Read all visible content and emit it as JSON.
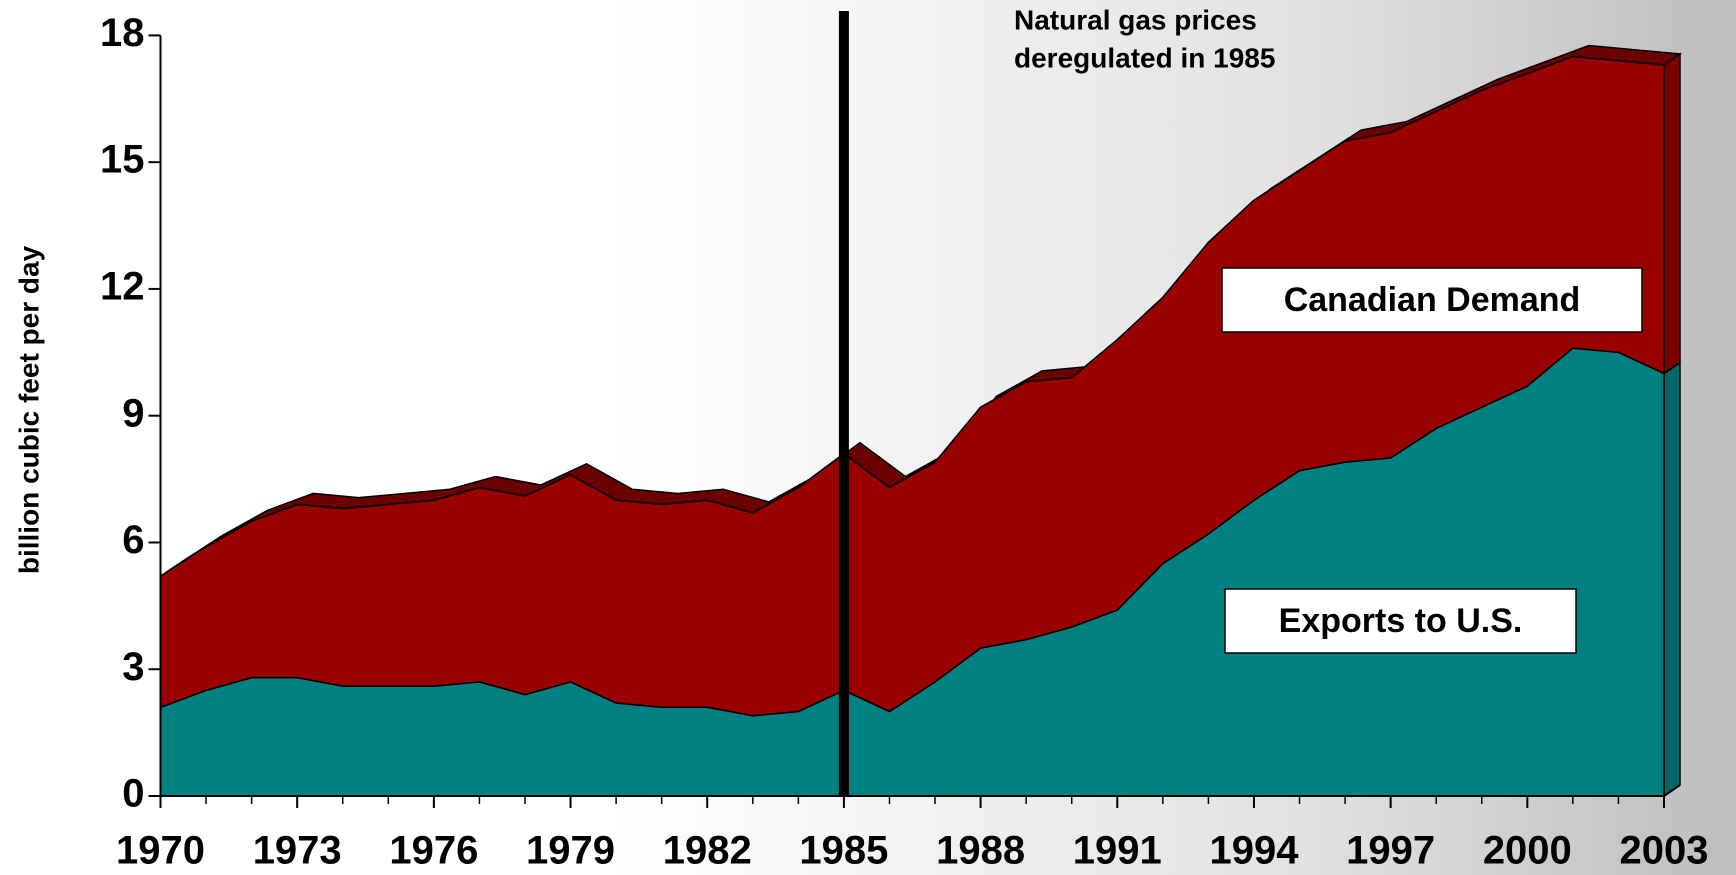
{
  "chart_data": {
    "type": "stacked_area",
    "ylabel": "billion cubic feet per day",
    "annotation": [
      "Natural gas prices",
      "deregulated in 1985"
    ],
    "vline_x": 1985,
    "x": [
      1970,
      1971,
      1972,
      1973,
      1974,
      1975,
      1976,
      1977,
      1978,
      1979,
      1980,
      1981,
      1982,
      1983,
      1984,
      1985,
      1986,
      1987,
      1988,
      1989,
      1990,
      1991,
      1992,
      1993,
      1994,
      1995,
      1996,
      1997,
      1998,
      1999,
      2000,
      2001,
      2002,
      2003
    ],
    "series": [
      {
        "name": "Exports to U.S.",
        "color": "#008080",
        "values": [
          2.1,
          2.5,
          2.8,
          2.8,
          2.6,
          2.6,
          2.6,
          2.7,
          2.4,
          2.7,
          2.2,
          2.1,
          2.1,
          1.9,
          2.0,
          2.5,
          2.0,
          2.7,
          3.5,
          3.7,
          4.0,
          4.4,
          5.5,
          6.2,
          7.0,
          7.7,
          7.9,
          8.0,
          8.7,
          9.2,
          9.7,
          10.6,
          10.5,
          10.0
        ]
      },
      {
        "name": "Canadian Demand",
        "color": "#990000",
        "values": [
          3.1,
          3.4,
          3.7,
          4.1,
          4.2,
          4.3,
          4.4,
          4.6,
          4.7,
          4.9,
          4.8,
          4.8,
          4.9,
          4.8,
          5.3,
          5.6,
          5.3,
          5.2,
          5.7,
          6.1,
          5.9,
          6.4,
          6.3,
          6.9,
          7.1,
          7.1,
          7.6,
          7.7,
          7.5,
          7.5,
          7.4,
          6.9,
          6.9,
          7.3
        ]
      }
    ],
    "xlim": [
      1970,
      2003
    ],
    "xticks": [
      1970,
      1973,
      1976,
      1979,
      1982,
      1985,
      1988,
      1991,
      1994,
      1997,
      2000,
      2003
    ],
    "ylim": [
      0,
      18
    ],
    "yticks": [
      0,
      3,
      6,
      9,
      12,
      15,
      18
    ]
  }
}
